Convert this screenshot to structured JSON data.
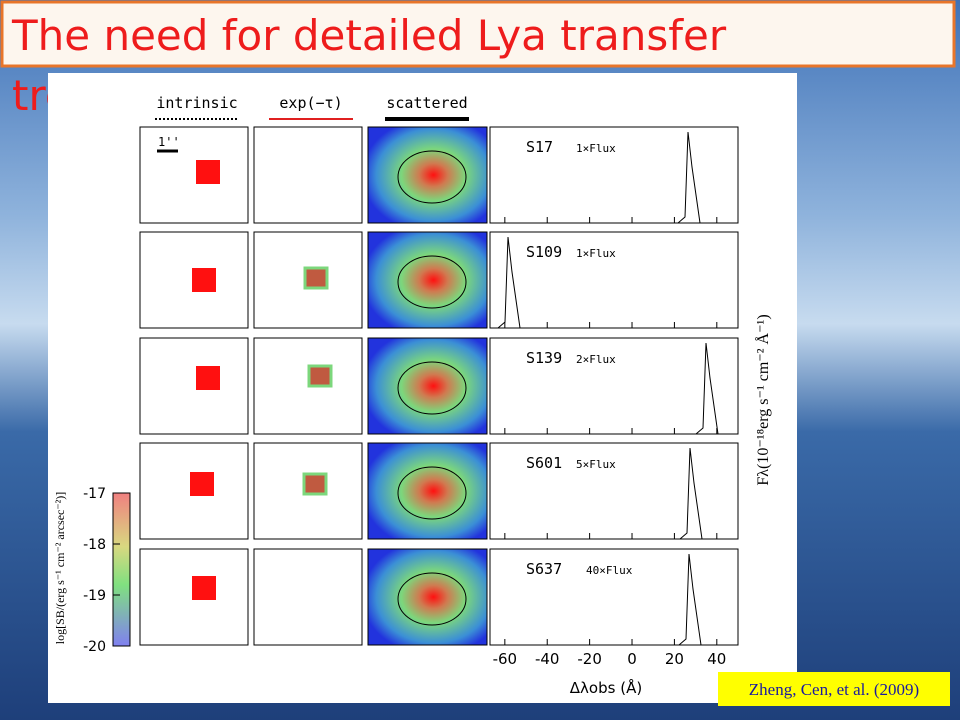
{
  "slide": {
    "title": "The need for detailed Lya transfer",
    "title_continued": "tre",
    "citation": "Zheng, Cen, et al. (2009)"
  },
  "figure": {
    "column_headers": [
      "intrinsic",
      "exp(−τ)",
      "scattered"
    ],
    "scale_bar": "1''",
    "rows": [
      {
        "name": "S17",
        "flux": "1×Flux"
      },
      {
        "name": "S109",
        "flux": "1×Flux"
      },
      {
        "name": "S139",
        "flux": "2×Flux"
      },
      {
        "name": "S601",
        "flux": "5×Flux"
      },
      {
        "name": "S637",
        "flux": "40×Flux"
      }
    ],
    "colorbar": {
      "label": "log[SB/(erg s⁻¹ cm⁻² arcsec⁻²)]",
      "lim": [
        -20,
        -17
      ],
      "ticks": [
        -17,
        -18,
        -19,
        -20
      ]
    },
    "spectrum_axis": {
      "xlabel": "Δλobs (Å)",
      "ylabel": "Fλ(10⁻¹⁸erg s⁻¹ cm⁻² Å⁻¹)",
      "xlim": [
        -67,
        50
      ],
      "xticks": [
        -60,
        -40,
        -20,
        0,
        20,
        40
      ]
    }
  }
}
